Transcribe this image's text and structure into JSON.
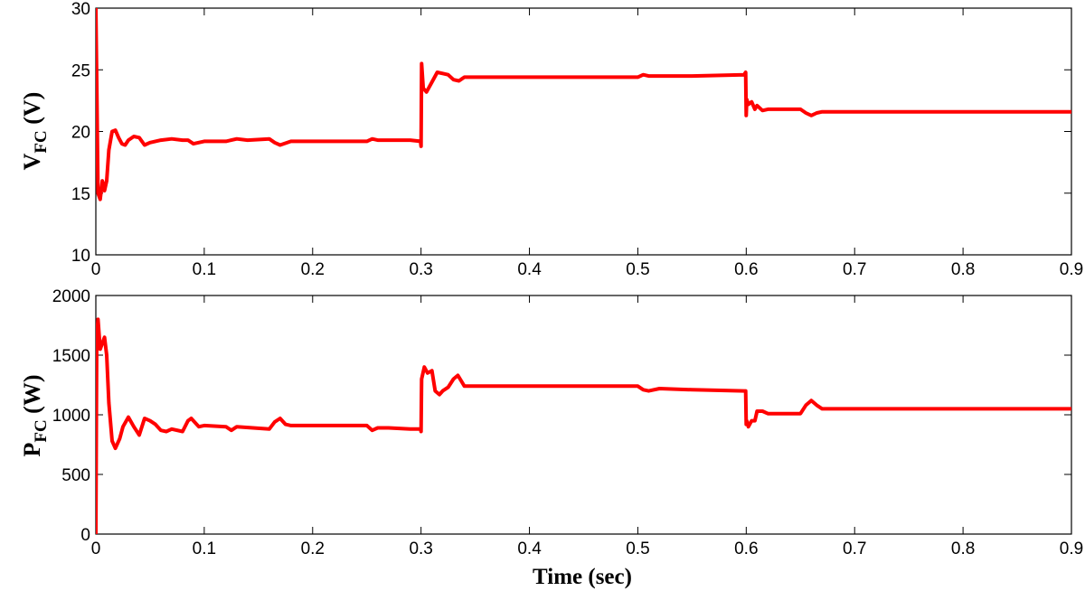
{
  "chart_data": [
    {
      "type": "line",
      "id": "vfc",
      "ylabel_main": "V",
      "ylabel_sub": "FC",
      "ylabel_unit": "(V)",
      "xlim": [
        0,
        0.9
      ],
      "ylim": [
        10,
        30
      ],
      "xticks": [
        0,
        0.1,
        0.2,
        0.3,
        0.4,
        0.5,
        0.6,
        0.7,
        0.8,
        0.9
      ],
      "xtick_labels": [
        "0",
        "0.1",
        "0.2",
        "0.3",
        "0.4",
        "0.5",
        "0.6",
        "0.7",
        "0.8",
        "0.9"
      ],
      "yticks": [
        10,
        15,
        20,
        25,
        30
      ],
      "ytick_labels": [
        "10",
        "15",
        "20",
        "25",
        "30"
      ],
      "grid": false,
      "line_color": "#ff0000",
      "series": [
        {
          "x": [
            0,
            0.0008,
            0.002,
            0.004,
            0.006,
            0.008,
            0.01,
            0.012,
            0.015,
            0.018,
            0.021,
            0.024,
            0.027,
            0.03,
            0.035,
            0.04,
            0.045,
            0.05,
            0.06,
            0.07,
            0.08,
            0.085,
            0.09,
            0.1,
            0.12,
            0.13,
            0.14,
            0.16,
            0.165,
            0.17,
            0.18,
            0.2,
            0.25,
            0.255,
            0.26,
            0.27,
            0.29,
            0.2995,
            0.3,
            0.3005,
            0.302,
            0.305,
            0.31,
            0.315,
            0.32,
            0.325,
            0.33,
            0.335,
            0.34,
            0.35,
            0.4,
            0.5,
            0.505,
            0.51,
            0.55,
            0.598,
            0.5995,
            0.6,
            0.6005,
            0.602,
            0.605,
            0.608,
            0.61,
            0.615,
            0.62,
            0.63,
            0.64,
            0.65,
            0.655,
            0.66,
            0.665,
            0.67,
            0.68,
            0.7,
            0.8,
            0.9
          ],
          "y": [
            30,
            24,
            15,
            14.5,
            16,
            15.2,
            16,
            18.5,
            20,
            20.1,
            19.5,
            19,
            18.9,
            19.3,
            19.6,
            19.5,
            18.9,
            19.1,
            19.3,
            19.4,
            19.3,
            19.3,
            19,
            19.2,
            19.2,
            19.4,
            19.3,
            19.4,
            19.1,
            18.9,
            19.2,
            19.2,
            19.2,
            19.4,
            19.3,
            19.3,
            19.3,
            19.2,
            18.8,
            25.5,
            23.5,
            23.2,
            24,
            24.8,
            24.7,
            24.6,
            24.2,
            24.1,
            24.4,
            24.4,
            24.4,
            24.4,
            24.6,
            24.5,
            24.5,
            24.6,
            24.8,
            21.3,
            22.6,
            22.2,
            22.4,
            21.8,
            22.1,
            21.7,
            21.8,
            21.8,
            21.8,
            21.8,
            21.5,
            21.3,
            21.5,
            21.6,
            21.6,
            21.6,
            21.6,
            21.6
          ]
        }
      ]
    },
    {
      "type": "line",
      "id": "pfc",
      "ylabel_main": "P",
      "ylabel_sub": "FC",
      "ylabel_unit": "(W)",
      "xlabel": "Time (sec)",
      "xlim": [
        0,
        0.9
      ],
      "ylim": [
        0,
        2000
      ],
      "xticks": [
        0,
        0.1,
        0.2,
        0.3,
        0.4,
        0.5,
        0.6,
        0.7,
        0.8,
        0.9
      ],
      "xtick_labels": [
        "0",
        "0.1",
        "0.2",
        "0.3",
        "0.4",
        "0.5",
        "0.6",
        "0.7",
        "0.8",
        "0.9"
      ],
      "yticks": [
        0,
        500,
        1000,
        1500,
        2000
      ],
      "ytick_labels": [
        "0",
        "500",
        "1000",
        "1500",
        "2000"
      ],
      "grid": false,
      "line_color": "#ff0000",
      "series": [
        {
          "x": [
            0,
            0.0008,
            0.002,
            0.004,
            0.006,
            0.008,
            0.01,
            0.012,
            0.015,
            0.018,
            0.022,
            0.025,
            0.03,
            0.035,
            0.04,
            0.045,
            0.05,
            0.055,
            0.06,
            0.065,
            0.07,
            0.08,
            0.085,
            0.088,
            0.095,
            0.1,
            0.12,
            0.125,
            0.13,
            0.16,
            0.165,
            0.17,
            0.175,
            0.18,
            0.2,
            0.25,
            0.255,
            0.26,
            0.27,
            0.29,
            0.2995,
            0.3,
            0.3005,
            0.303,
            0.306,
            0.31,
            0.313,
            0.317,
            0.32,
            0.325,
            0.33,
            0.334,
            0.34,
            0.345,
            0.35,
            0.4,
            0.5,
            0.505,
            0.51,
            0.52,
            0.55,
            0.598,
            0.5995,
            0.6,
            0.6005,
            0.602,
            0.605,
            0.608,
            0.61,
            0.615,
            0.62,
            0.63,
            0.65,
            0.655,
            0.66,
            0.665,
            0.67,
            0.68,
            0.7,
            0.8,
            0.9
          ],
          "y": [
            0,
            1650,
            1800,
            1550,
            1600,
            1650,
            1500,
            1100,
            780,
            720,
            800,
            900,
            980,
            900,
            830,
            970,
            950,
            920,
            870,
            860,
            880,
            860,
            950,
            970,
            900,
            910,
            900,
            870,
            900,
            880,
            940,
            970,
            920,
            910,
            910,
            910,
            870,
            890,
            890,
            880,
            880,
            860,
            1300,
            1400,
            1350,
            1370,
            1200,
            1170,
            1200,
            1230,
            1300,
            1330,
            1240,
            1240,
            1240,
            1240,
            1240,
            1210,
            1200,
            1220,
            1210,
            1200,
            1200,
            920,
            950,
            900,
            950,
            950,
            1030,
            1030,
            1010,
            1010,
            1010,
            1080,
            1120,
            1080,
            1050,
            1050,
            1050,
            1050,
            1050
          ]
        }
      ]
    }
  ]
}
